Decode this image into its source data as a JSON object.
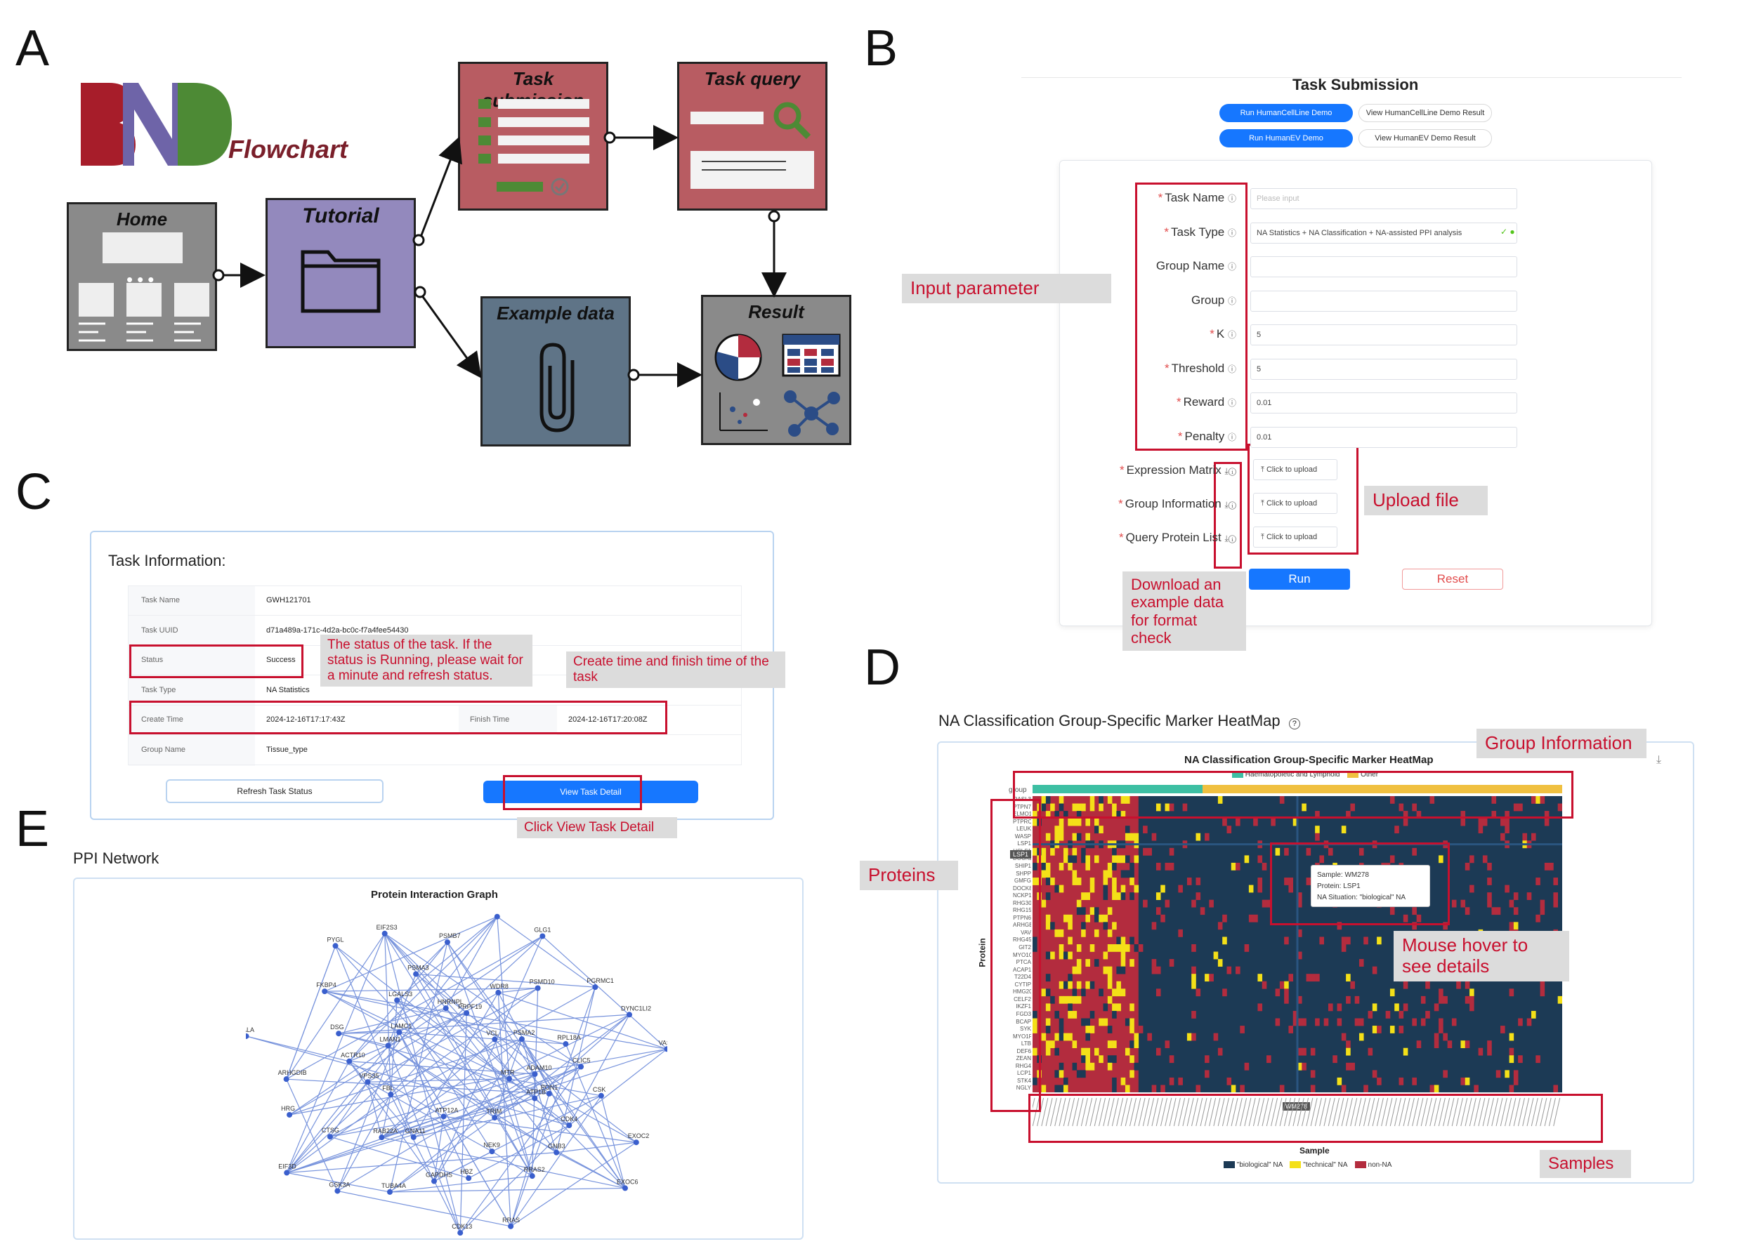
{
  "letters": {
    "a": "A",
    "b": "B",
    "c": "C",
    "d": "D",
    "e": "E"
  },
  "flowchart": {
    "logo_sub": "Flowchart",
    "home": "Home",
    "tutorial": "Tutorial",
    "task_submission": "Task submission",
    "task_query": "Task query",
    "example_data": "Example data",
    "result": "Result",
    "colors": {
      "home": "#8a8a8a",
      "tutorial": "#9389bd",
      "task": "#b85c62",
      "example": "#5f7487",
      "result": "#8a8a8a"
    }
  },
  "task_submission": {
    "title": "Task Submission",
    "demo_buttons": [
      {
        "label": "Run HumanCellLine Demo",
        "kind": "primary"
      },
      {
        "label": "View HumanCellLine Demo Result",
        "kind": "default"
      },
      {
        "label": "Run HumanEV Demo",
        "kind": "primary"
      },
      {
        "label": "View HumanEV Demo Result",
        "kind": "default"
      }
    ],
    "fields": [
      {
        "label": "Task Name",
        "required": true,
        "value": "",
        "placeholder": "Please input"
      },
      {
        "label": "Task Type",
        "required": true,
        "value": "NA Statistics + NA Classification + NA-assisted PPI analysis"
      },
      {
        "label": "Group Name",
        "required": false,
        "value": ""
      },
      {
        "label": "Group",
        "required": false,
        "value": ""
      },
      {
        "label": "K",
        "required": true,
        "value": "5"
      },
      {
        "label": "Threshold",
        "required": true,
        "value": "5"
      },
      {
        "label": "Reward",
        "required": true,
        "value": "0.01"
      },
      {
        "label": "Penalty",
        "required": true,
        "value": "0.01"
      }
    ],
    "uploads": [
      {
        "label": "Expression Matrix",
        "button": "Click to upload"
      },
      {
        "label": "Group Information",
        "button": "Click to upload"
      },
      {
        "label": "Query Protein List",
        "button": "Click to upload"
      }
    ],
    "run": "Run",
    "reset": "Reset",
    "callouts": {
      "input": "Input parameter",
      "upload": "Upload file",
      "download": "Download an example data for format check"
    }
  },
  "task_info": {
    "title": "Task Information:",
    "rows": [
      {
        "label": "Task Name",
        "value": "GWH121701"
      },
      {
        "label": "Task UUID",
        "value": "d71a489a-171c-4d2a-bc0c-f7a4fee54430"
      },
      {
        "label": "Status",
        "value": "Success"
      },
      {
        "label": "Task Type",
        "value": "NA Statistics"
      },
      {
        "label": "Create Time",
        "value": "2024-12-16T17:17:43Z",
        "label2": "Finish Time",
        "value2": "2024-12-16T17:20:08Z"
      },
      {
        "label": "Group Name",
        "value": "Tissue_type"
      }
    ],
    "refresh": "Refresh Task Status",
    "view": "View Task Detail",
    "callouts": {
      "status": "The status of the task. If the status is Running, please wait for a minute and refresh status.",
      "time": "Create time and finish time of the task",
      "click": "Click View Task Detail"
    }
  },
  "heatmap": {
    "header": "NA Classification Group-Specific Marker HeatMap",
    "title": "NA Classification Group-Specific Marker HeatMap",
    "group_legend": [
      "Haematopoietic and Lymphoid",
      "Other"
    ],
    "group_colors": [
      "#3dbfa3",
      "#f0c040"
    ],
    "group_axis": "group",
    "y_label": "Protein",
    "x_label": "Sample",
    "proteins": [
      "RASL3",
      "PTPN7",
      "ELMO1",
      "PTPRC",
      "LEUK",
      "WASP",
      "LSP1",
      "HCLS1",
      "DOCK2",
      "SHIP1",
      "SHPP",
      "GMFG",
      "DOCK8",
      "NCKP1",
      "RHG30",
      "RHG15",
      "PTPN6",
      "ARHGE",
      "VAV",
      "RHG45",
      "GIT2",
      "MYO1G",
      "PTCA",
      "ACAP1",
      "T22D4",
      "CYTIP",
      "HMG20",
      "CELF2",
      "IKZF1",
      "FGD3",
      "BCAP",
      "SYK",
      "MYO1F",
      "LTB",
      "DEF6",
      "ZEAN",
      "RHG4",
      "LCP1",
      "STK4",
      "NGLY"
    ],
    "samples": [
      "WM278"
    ],
    "tooltip": {
      "sample": "Sample: WM278",
      "protein": "Protein: LSP1",
      "situation": "NA Situation: \"biological\" NA"
    },
    "row_tag": "LSP1",
    "col_tag": "WM278",
    "legend": [
      {
        "label": "\"biological\" NA",
        "color": "#1c3a55"
      },
      {
        "label": "\"technical\" NA",
        "color": "#f4e018"
      },
      {
        "label": "non-NA",
        "color": "#b32c3e"
      }
    ],
    "callouts": {
      "group": "Group Information",
      "proteins": "Proteins",
      "hover": "Mouse hover to see details",
      "samples": "Samples"
    }
  },
  "ppi": {
    "header": "PPI Network",
    "title": "Protein Interaction Graph",
    "nodes": [
      "ADAM10",
      "PON1",
      "CDK4",
      "GNB3",
      "RRAS2",
      "RRAS",
      "CDK13",
      "ATP12A",
      "GNA11",
      "RAB22A",
      "CTSG",
      "HRG",
      "ARHGDIB",
      "RALA",
      "LMAN1",
      "LAMC1",
      "LGALS3",
      "PSMA3",
      "PSMB7",
      "M6PR",
      "GLG1",
      "VCL",
      "PSMA2",
      "RPL18A",
      "CLIC5",
      "CSK",
      "EXOC2",
      "EXOC6",
      "TRIM",
      "NEK9",
      "HBZ",
      "GAPDHS",
      "TUBA4A",
      "GSK3A",
      "EIF3D",
      "FBL",
      "VPS35",
      "ACTR10",
      "DSG",
      "FKBP4",
      "PYGL",
      "EIF2S3",
      "HNRNPL",
      "PRPF19",
      "WDR8",
      "PSMD10",
      "PGRMC1",
      "DYNC1LI2",
      "VASP",
      "MTR",
      "ATP1B"
    ]
  }
}
